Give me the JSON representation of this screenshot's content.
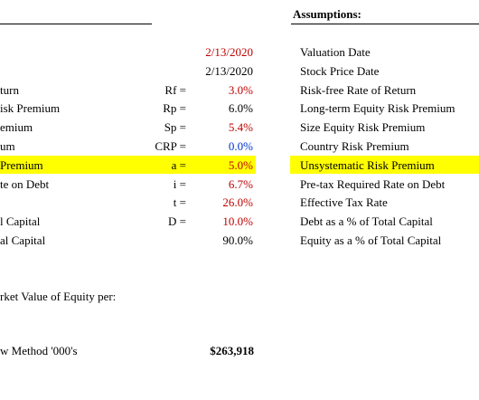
{
  "header": {
    "assumptions_title": "Assumptions:"
  },
  "rows": [
    {
      "left": "",
      "symbol": "",
      "value": "2/13/2020",
      "value_color": "red",
      "desc": "Valuation Date"
    },
    {
      "left": "",
      "symbol": "",
      "value": "2/13/2020",
      "value_color": "black",
      "desc": "Stock Price Date"
    },
    {
      "left": "turn",
      "symbol": "Rf =",
      "value": "3.0%",
      "value_color": "red",
      "desc": "Risk-free Rate of Return"
    },
    {
      "left": "isk Premium",
      "symbol": "Rp =",
      "value": "6.0%",
      "value_color": "black",
      "desc": "Long-term Equity Risk Premium"
    },
    {
      "left": "emium",
      "symbol": "Sp =",
      "value": "5.4%",
      "value_color": "red",
      "desc": "Size Equity Risk Premium"
    },
    {
      "left": "um",
      "symbol": "CRP =",
      "value": "0.0%",
      "value_color": "blue",
      "desc": "Country Risk Premium"
    },
    {
      "left": "Premium",
      "symbol": "a =",
      "value": "5.0%",
      "value_color": "red",
      "desc": "Unsystematic Risk Premium",
      "highlight": true
    },
    {
      "left": "te on Debt",
      "symbol": "i =",
      "value": "6.7%",
      "value_color": "red",
      "desc": "Pre-tax Required Rate on Debt"
    },
    {
      "left": "",
      "symbol": "t =",
      "value": "26.0%",
      "value_color": "red",
      "desc": "Effective Tax Rate"
    },
    {
      "left": "l Capital",
      "symbol": "D =",
      "value": "10.0%",
      "value_color": "red",
      "desc": "Debt as a % of Total Capital"
    },
    {
      "left": "al Capital",
      "symbol": "",
      "value": "90.0%",
      "value_color": "black",
      "desc": "Equity as a % of Total Capital"
    }
  ],
  "footer": {
    "market_value_label": "rket Value of Equity per:",
    "method_label": "w Method '000's",
    "method_value": "$263,918"
  },
  "colors": {
    "red": "#c00000",
    "blue": "#0033cc",
    "highlight": "#ffff00"
  }
}
